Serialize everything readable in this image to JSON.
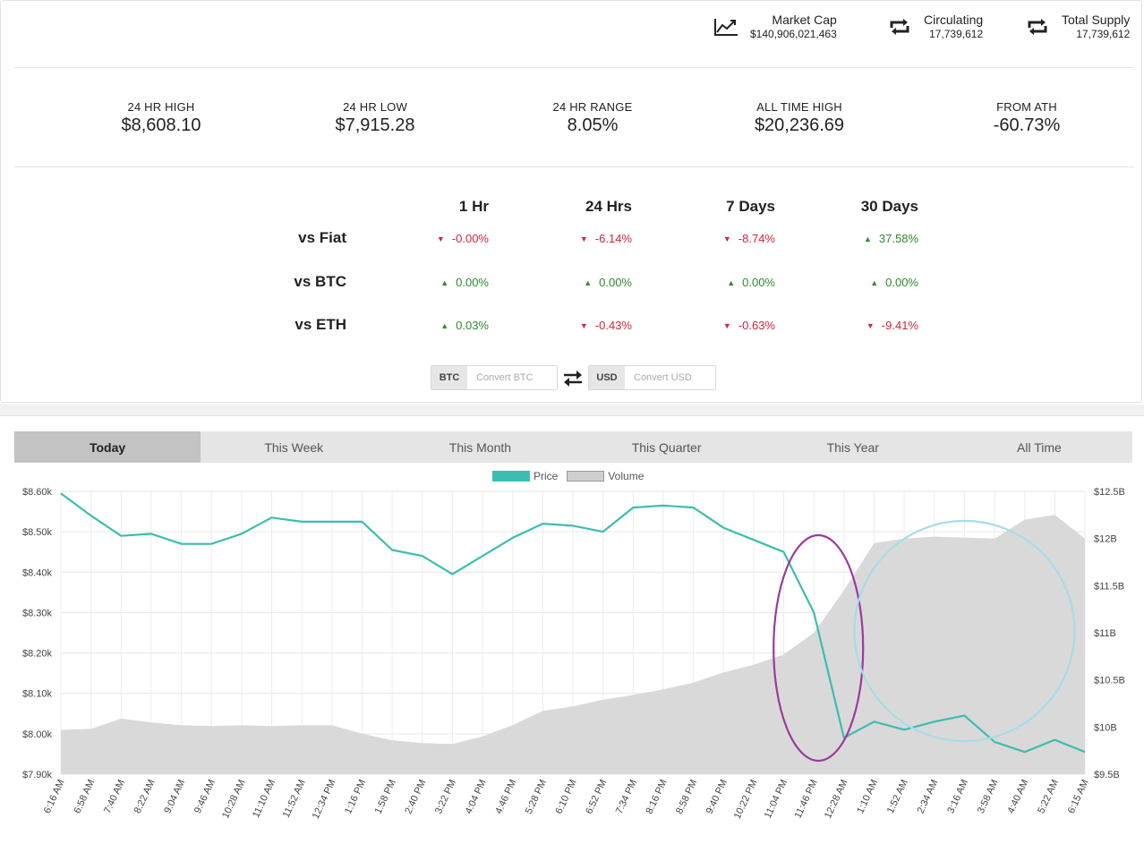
{
  "header_metrics": [
    {
      "icon": "trend-chart-icon",
      "label": "Market Cap",
      "value": "$140,906,021,463"
    },
    {
      "icon": "repeat-arrows-icon",
      "label": "Circulating",
      "value": "17,739,612"
    },
    {
      "icon": "repeat-arrows-icon",
      "label": "Total Supply",
      "value": "17,739,612"
    }
  ],
  "stats": [
    {
      "label": "24 HR HIGH",
      "value": "$8,608.10"
    },
    {
      "label": "24 HR LOW",
      "value": "$7,915.28"
    },
    {
      "label": "24 HR RANGE",
      "value": "8.05%"
    },
    {
      "label": "ALL TIME HIGH",
      "value": "$20,236.69"
    },
    {
      "label": "FROM ATH",
      "value": "-60.73%"
    }
  ],
  "performance": {
    "columns": [
      "1 Hr",
      "24 Hrs",
      "7 Days",
      "30 Days"
    ],
    "rows": [
      {
        "label": "vs Fiat",
        "cells": [
          {
            "value": "-0.00%",
            "dir": "down"
          },
          {
            "value": "-6.14%",
            "dir": "down"
          },
          {
            "value": "-8.74%",
            "dir": "down"
          },
          {
            "value": "37.58%",
            "dir": "up"
          }
        ]
      },
      {
        "label": "vs BTC",
        "cells": [
          {
            "value": "0.00%",
            "dir": "up"
          },
          {
            "value": "0.00%",
            "dir": "up"
          },
          {
            "value": "0.00%",
            "dir": "up"
          },
          {
            "value": "0.00%",
            "dir": "up"
          }
        ]
      },
      {
        "label": "vs ETH",
        "cells": [
          {
            "value": "0.03%",
            "dir": "up"
          },
          {
            "value": "-0.43%",
            "dir": "down"
          },
          {
            "value": "-0.63%",
            "dir": "down"
          },
          {
            "value": "-9.41%",
            "dir": "down"
          }
        ]
      }
    ],
    "colors": {
      "up": "#2d8a2d",
      "down": "#d0253c"
    }
  },
  "converter": {
    "from_currency": "BTC",
    "from_placeholder": "Convert BTC",
    "to_currency": "USD",
    "to_placeholder": "Convert USD",
    "swap_icon": "swap-arrows-icon"
  },
  "time_tabs": {
    "items": [
      "Today",
      "This Week",
      "This Month",
      "This Quarter",
      "This Year",
      "All Time"
    ],
    "active": "Today"
  },
  "legend": {
    "price": "Price",
    "volume": "Volume"
  },
  "chart_data": {
    "type": "line",
    "series": [
      {
        "name": "Price",
        "axis": "left",
        "color": "#3dbdb0",
        "x": [
          "6:16 AM",
          "6:58 AM",
          "7:40 AM",
          "8:22 AM",
          "9:04 AM",
          "9:46 AM",
          "10:28 AM",
          "11:10 AM",
          "11:52 AM",
          "12:34 PM",
          "1:16 PM",
          "1:58 PM",
          "2:40 PM",
          "3:22 PM",
          "4:04 PM",
          "4:46 PM",
          "5:28 PM",
          "6:10 PM",
          "6:52 PM",
          "7:34 PM",
          "8:16 PM",
          "8:58 PM",
          "9:40 PM",
          "10:22 PM",
          "11:04 PM",
          "11:46 PM",
          "12:28 AM",
          "1:10 AM",
          "1:52 AM",
          "2:34 AM",
          "3:16 AM",
          "3:58 AM",
          "4:40 AM",
          "5:22 AM",
          "6:15 AM"
        ],
        "values": [
          8595,
          8540,
          8490,
          8495,
          8470,
          8470,
          8495,
          8535,
          8525,
          8525,
          8525,
          8455,
          8440,
          8395,
          8440,
          8485,
          8520,
          8515,
          8500,
          8560,
          8565,
          8560,
          8510,
          8480,
          8450,
          8300,
          7990,
          8030,
          8010,
          8030,
          8045,
          7980,
          7955,
          7985,
          7955
        ]
      },
      {
        "name": "Volume",
        "axis": "right",
        "color": "#d9d9d9",
        "values": [
          9.97,
          9.98,
          10.09,
          10.05,
          10.02,
          10.01,
          10.02,
          10.01,
          10.02,
          10.02,
          9.93,
          9.86,
          9.83,
          9.82,
          9.9,
          10.02,
          10.17,
          10.22,
          10.29,
          10.34,
          10.4,
          10.47,
          10.58,
          10.66,
          10.77,
          11.0,
          11.45,
          11.95,
          12.0,
          12.02,
          12.01,
          12.0,
          12.2,
          12.25,
          12.0
        ]
      }
    ],
    "ylim_left": [
      7900,
      8600
    ],
    "yticks_left": [
      "$8.60k",
      "$8.50k",
      "$8.40k",
      "$8.30k",
      "$8.20k",
      "$8.10k",
      "$8.00k",
      "$7.90k"
    ],
    "ylim_right": [
      9.5,
      12.5
    ],
    "yticks_right": [
      "$12.5B",
      "$12B",
      "$11.5B",
      "$11B",
      "$10.5B",
      "$10B",
      "$9.5B"
    ],
    "xticks": [
      "6:16 AM",
      "6:58 AM",
      "7:40 AM",
      "8:22 AM",
      "9:04 AM",
      "9:46 AM",
      "10:28 AM",
      "11:10 AM",
      "11:52 AM",
      "12:34 PM",
      "1:16 PM",
      "1:58 PM",
      "2:40 PM",
      "3:22 PM",
      "4:04 PM",
      "4:46 PM",
      "5:28 PM",
      "6:10 PM",
      "6:52 PM",
      "7:34 PM",
      "8:16 PM",
      "8:58 PM",
      "9:40 PM",
      "10:22 PM",
      "11:04 PM",
      "11:46 PM",
      "12:28 AM",
      "1:10 AM",
      "1:52 AM",
      "2:34 AM",
      "3:16 AM",
      "3:58 AM",
      "4:40 AM",
      "5:22 AM",
      "6:15 AM"
    ],
    "grid": true,
    "annotations": [
      {
        "shape": "ellipse",
        "color": "#9b3a9b",
        "around": [
          "11:04 PM",
          "12:28 AM"
        ]
      },
      {
        "shape": "circle",
        "color": "#a7dce8",
        "around": [
          "1:10 AM",
          "5:22 AM"
        ]
      }
    ]
  }
}
